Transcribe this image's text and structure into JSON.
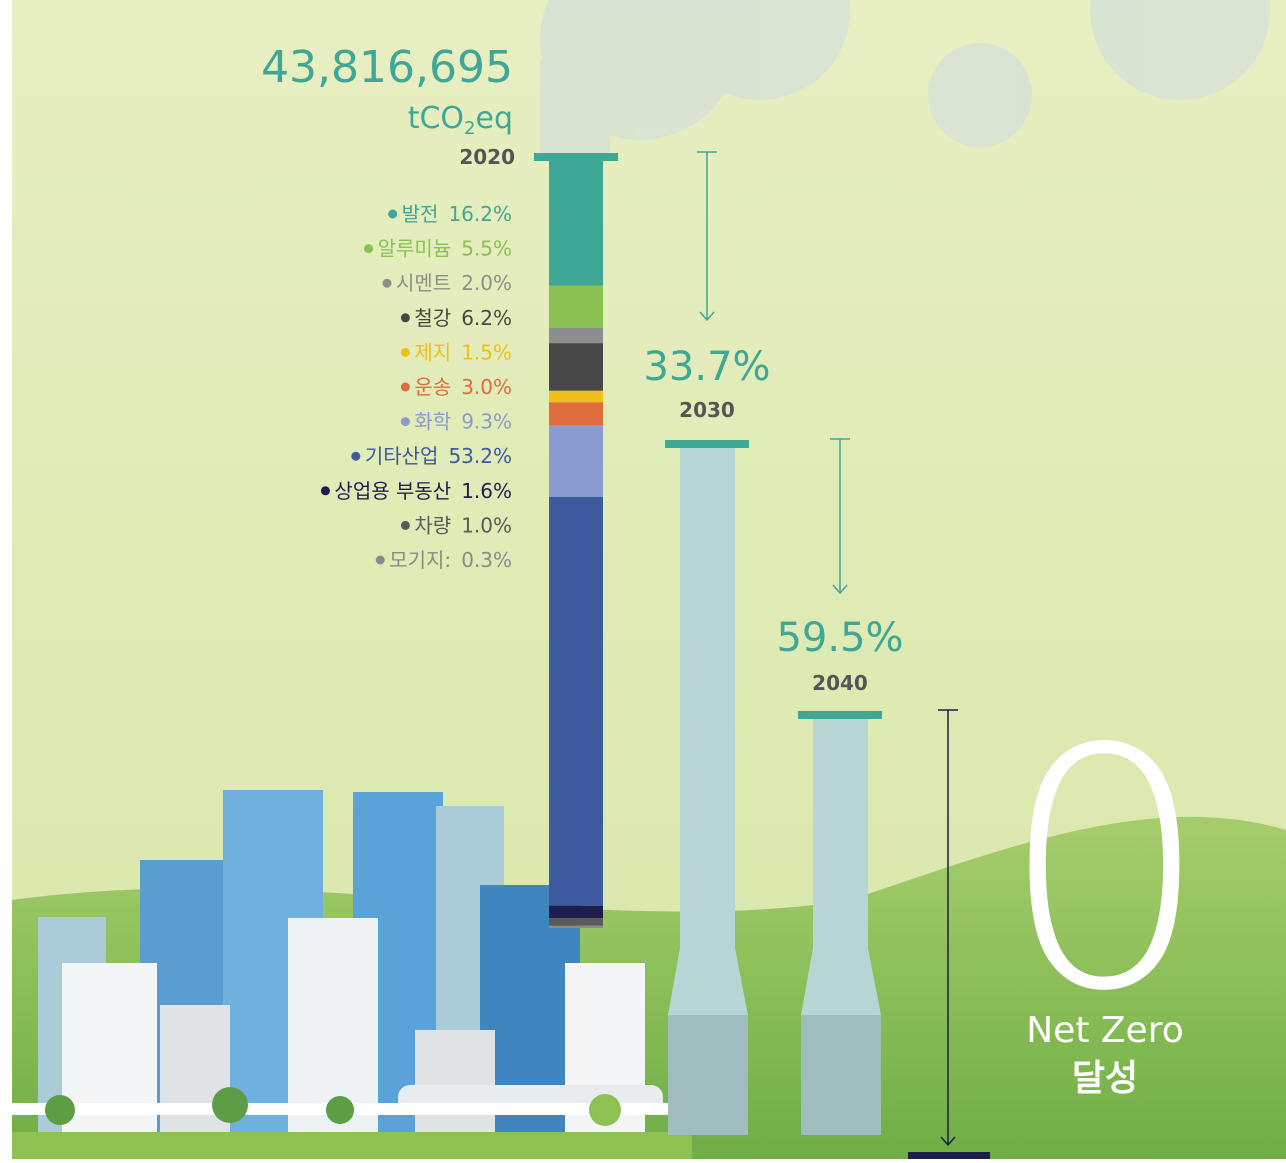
{
  "chart_data": {
    "type": "stacked-chimney",
    "title": "43,816,695",
    "unit": [
      "tCO",
      "2",
      "eq"
    ],
    "year": "2020",
    "series": [
      {
        "name": "발전",
        "color": "#3fa796",
        "values": [
          16.2
        ],
        "value_labels": [
          "16.2%"
        ]
      },
      {
        "name": "알루미늄",
        "color": "#8bc152",
        "values": [
          5.5
        ],
        "value_labels": [
          "5.5%"
        ]
      },
      {
        "name": "시멘트",
        "color": "#8e8e8e",
        "values": [
          2.0
        ],
        "value_labels": [
          "2.0%"
        ]
      },
      {
        "name": "철강",
        "color": "#474747",
        "values": [
          6.2
        ],
        "value_labels": [
          "6.2%"
        ]
      },
      {
        "name": "제지",
        "color": "#f0bf1a",
        "values": [
          1.5
        ],
        "value_labels": [
          "1.5%"
        ]
      },
      {
        "name": "운송",
        "color": "#df6c3c",
        "values": [
          3.0
        ],
        "value_labels": [
          "3.0%"
        ]
      },
      {
        "name": "화학",
        "color": "#8a9bd0",
        "values": [
          9.3
        ],
        "value_labels": [
          "9.3%"
        ]
      },
      {
        "name": "기타산업",
        "color": "#3d5a9e",
        "values": [
          53.2
        ],
        "value_labels": [
          "53.2%"
        ]
      },
      {
        "name": "상업용 부동산",
        "color": "#1e1e4c",
        "values": [
          1.6
        ],
        "value_labels": [
          "1.6%"
        ]
      },
      {
        "name": "차량",
        "color": "#5a5a5a",
        "values": [
          1.0
        ],
        "value_labels": [
          "1.0%"
        ]
      },
      {
        "name": "모기지:",
        "color": "#8a8a8a",
        "values": [
          0.3
        ],
        "value_labels": [
          "0.3%"
        ]
      }
    ]
  },
  "milestones": [
    {
      "value": "33.7%",
      "year": "2030"
    },
    {
      "value": "59.5%",
      "year": "2040"
    }
  ],
  "net_zero": {
    "big": "0",
    "line1": "Net Zero",
    "line2": "달성"
  }
}
